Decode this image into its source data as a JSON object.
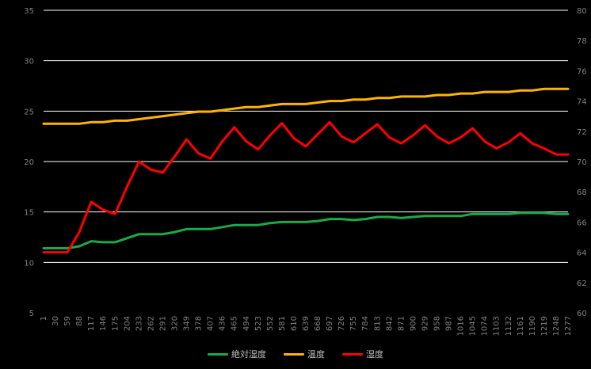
{
  "chart_data": {
    "type": "line",
    "colors": {
      "background": "#000000",
      "grid": "#ffffff",
      "axis_text": "#808080"
    },
    "y_left": {
      "min": 5,
      "max": 35,
      "ticks": [
        5,
        10,
        15,
        20,
        25,
        30,
        35
      ]
    },
    "y_right": {
      "min": 60,
      "max": 80,
      "ticks": [
        60,
        62,
        64,
        66,
        68,
        70,
        72,
        74,
        76,
        78,
        80
      ]
    },
    "x_labels": [
      "1",
      "30",
      "59",
      "88",
      "117",
      "146",
      "175",
      "204",
      "233",
      "262",
      "291",
      "320",
      "349",
      "378",
      "407",
      "436",
      "465",
      "494",
      "523",
      "552",
      "581",
      "610",
      "639",
      "668",
      "697",
      "726",
      "755",
      "784",
      "813",
      "842",
      "871",
      "900",
      "929",
      "958",
      "987",
      "1016",
      "1045",
      "1074",
      "1103",
      "1132",
      "1161",
      "1190",
      "1219",
      "1248",
      "1277"
    ],
    "series": [
      {
        "name": "絶対湿度",
        "axis": "left",
        "color": "#1aaa4a",
        "values": [
          11.4,
          11.4,
          11.4,
          11.6,
          12.1,
          12.0,
          12.0,
          12.4,
          12.8,
          12.8,
          12.8,
          13.0,
          13.3,
          13.3,
          13.3,
          13.5,
          13.7,
          13.7,
          13.7,
          13.9,
          14.0,
          14.0,
          14.0,
          14.1,
          14.3,
          14.3,
          14.2,
          14.3,
          14.5,
          14.5,
          14.4,
          14.5,
          14.6,
          14.6,
          14.6,
          14.6,
          14.8,
          14.8,
          14.8,
          14.8,
          14.9,
          14.9,
          14.9,
          14.8,
          14.8
        ]
      },
      {
        "name": "温度",
        "axis": "right",
        "color": "#ffb400",
        "values": [
          72.5,
          72.5,
          72.5,
          72.5,
          72.6,
          72.6,
          72.7,
          72.7,
          72.8,
          72.9,
          73.0,
          73.1,
          73.2,
          73.3,
          73.3,
          73.4,
          73.5,
          73.6,
          73.6,
          73.7,
          73.8,
          73.8,
          73.8,
          73.9,
          74.0,
          74.0,
          74.1,
          74.1,
          74.2,
          74.2,
          74.3,
          74.3,
          74.3,
          74.4,
          74.4,
          74.5,
          74.5,
          74.6,
          74.6,
          74.6,
          74.7,
          74.7,
          74.8,
          74.8,
          74.8
        ]
      },
      {
        "name": "湿度",
        "axis": "left",
        "color": "#ff0000",
        "values": [
          11.0,
          11.0,
          11.0,
          13.0,
          16.0,
          15.2,
          14.8,
          17.5,
          20.0,
          19.2,
          18.9,
          20.5,
          22.2,
          20.8,
          20.3,
          22.0,
          23.4,
          22.0,
          21.2,
          22.6,
          23.8,
          22.3,
          21.5,
          22.7,
          23.9,
          22.5,
          21.9,
          22.8,
          23.7,
          22.4,
          21.8,
          22.6,
          23.6,
          22.5,
          21.8,
          22.4,
          23.3,
          22.0,
          21.3,
          21.9,
          22.8,
          21.8,
          21.3,
          20.7,
          20.7
        ]
      }
    ]
  },
  "legend": {
    "items": [
      "絶対湿度",
      "温度",
      "湿度"
    ]
  }
}
